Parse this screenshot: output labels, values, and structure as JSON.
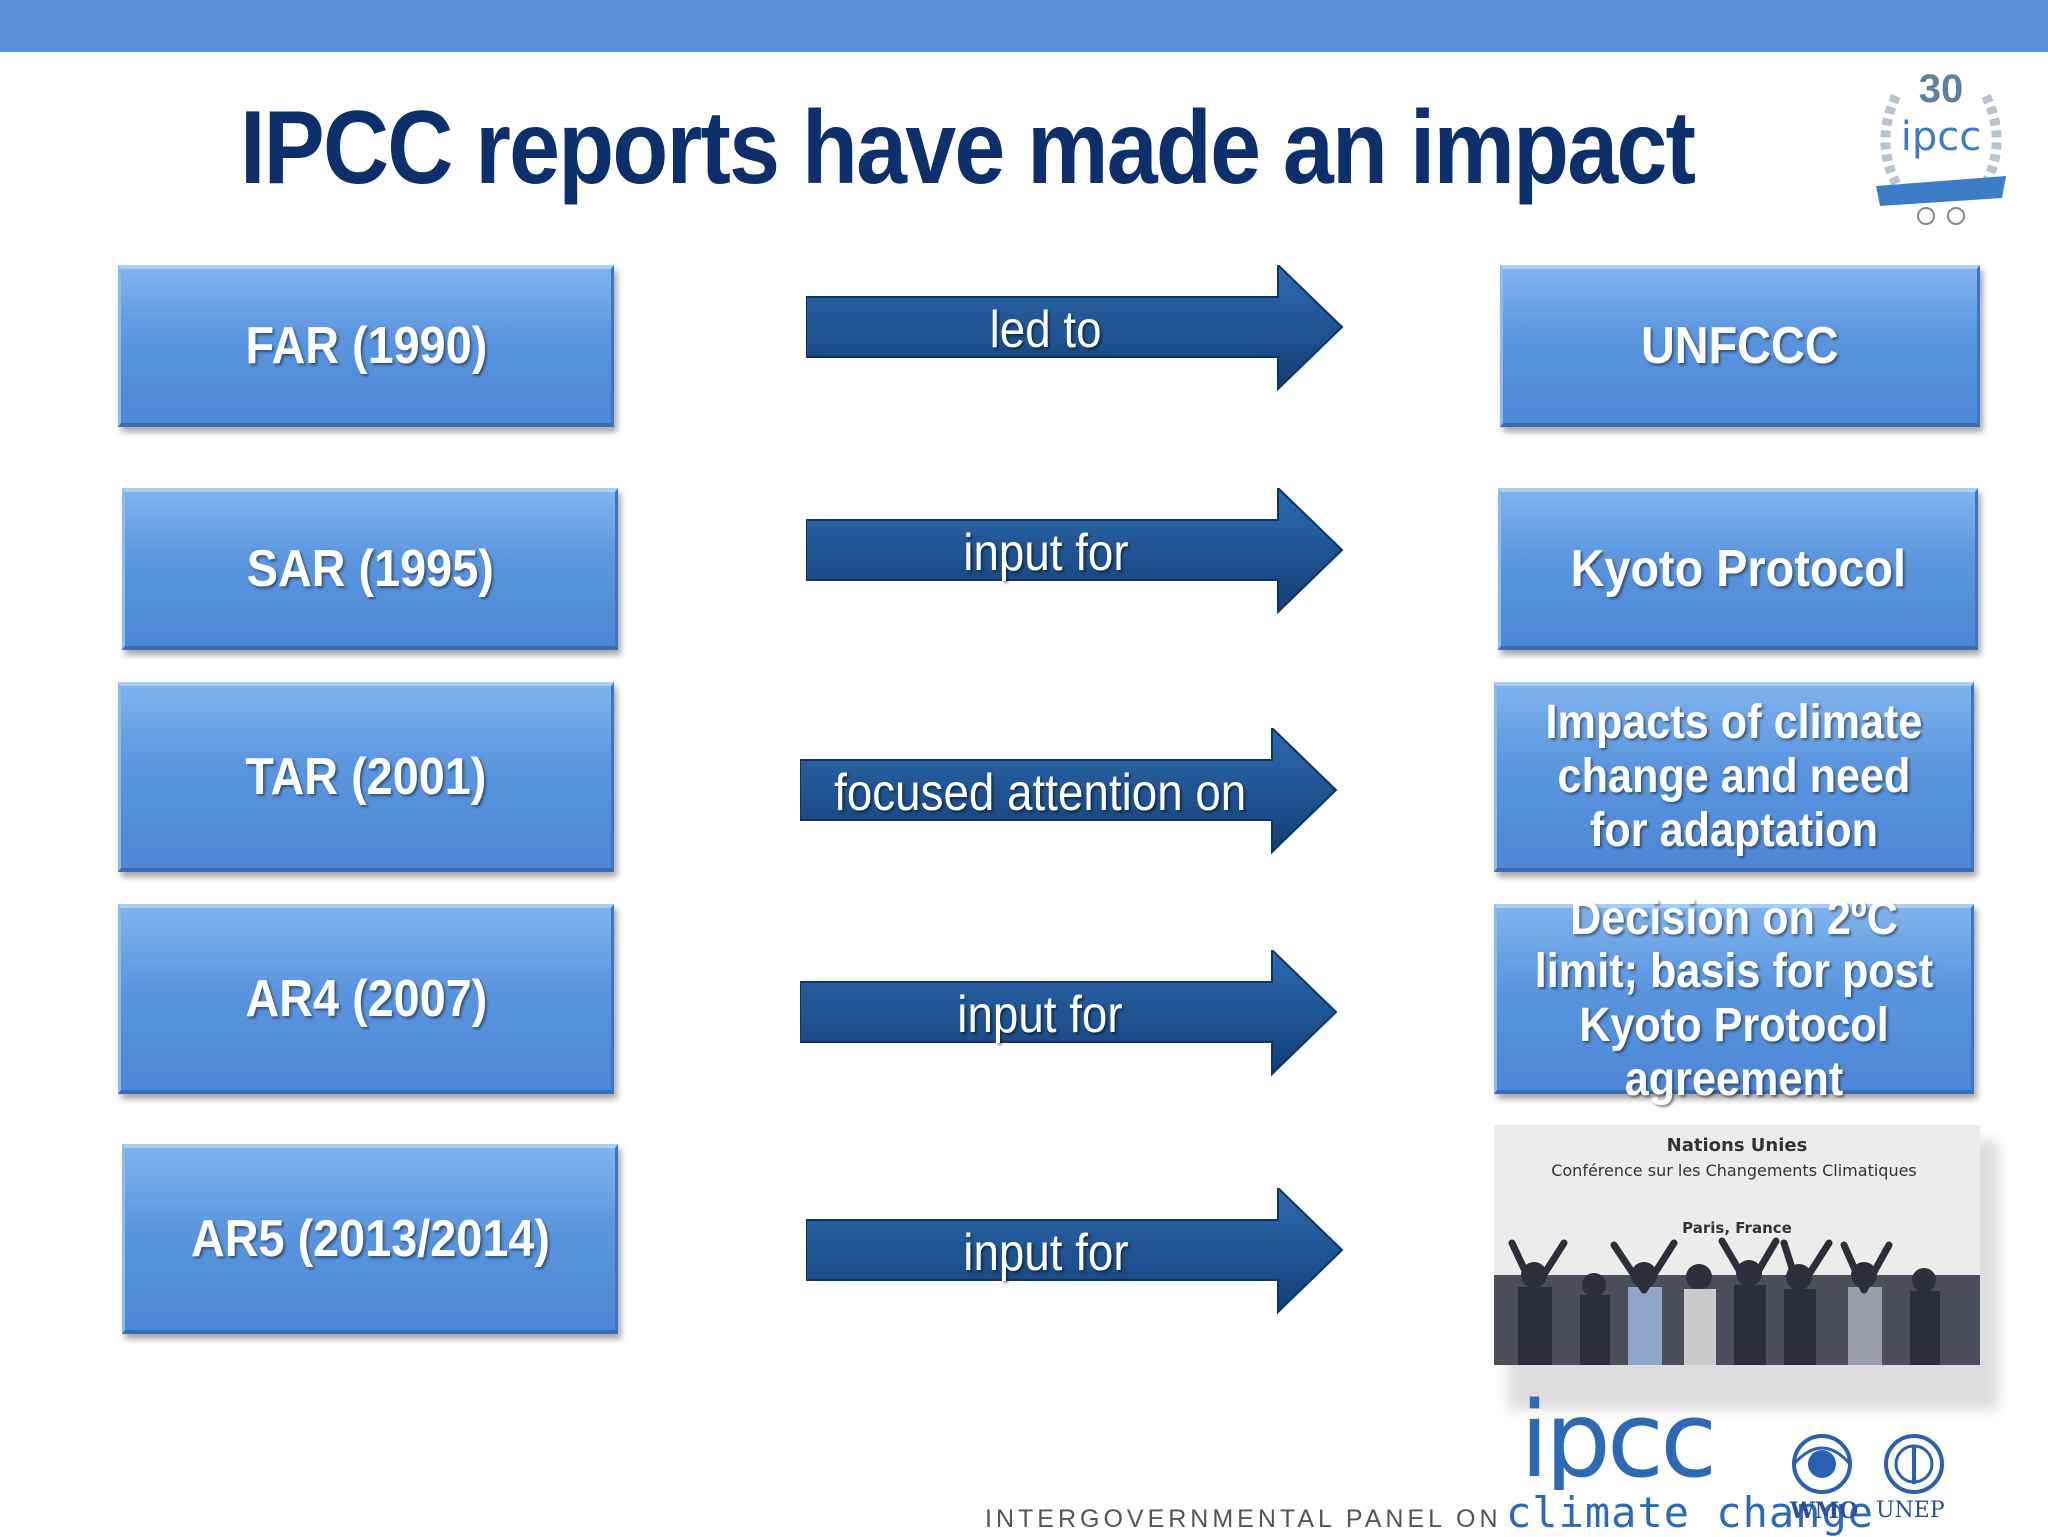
{
  "title": "IPCC reports have made an impact",
  "badge": {
    "number": "30",
    "text": "ipcc"
  },
  "rows": [
    {
      "report": "FAR (1990)",
      "relation": "led to",
      "outcome": "UNFCCC"
    },
    {
      "report": "SAR (1995)",
      "relation": "input for",
      "outcome": "Kyoto Protocol"
    },
    {
      "report": "TAR (2001)",
      "relation": "focused attention on",
      "outcome": "Impacts of climate change and need for adaptation"
    },
    {
      "report": "AR4 (2007)",
      "relation": "input for",
      "outcome": "Decision on 2ºC limit; basis for post Kyoto Protocol agreement"
    },
    {
      "report": "AR5 (2013/2014)",
      "relation": "input for",
      "outcome": ""
    }
  ],
  "photo": {
    "line1": "Nations Unies",
    "line2": "Conférence sur les Changements Climatiques",
    "line3": "Paris, France"
  },
  "footer": {
    "logo": "ipcc",
    "org_name_part1": "INTERGOVERNMENTAL PANEL ON",
    "org_name_part2": "climate change",
    "partner1": "WMO",
    "partner2": "UNEP"
  },
  "colors": {
    "topbar": "#5b8fd6",
    "title": "#0d2f6b",
    "box": "#5a95de",
    "arrow": "#1b4f8f"
  }
}
